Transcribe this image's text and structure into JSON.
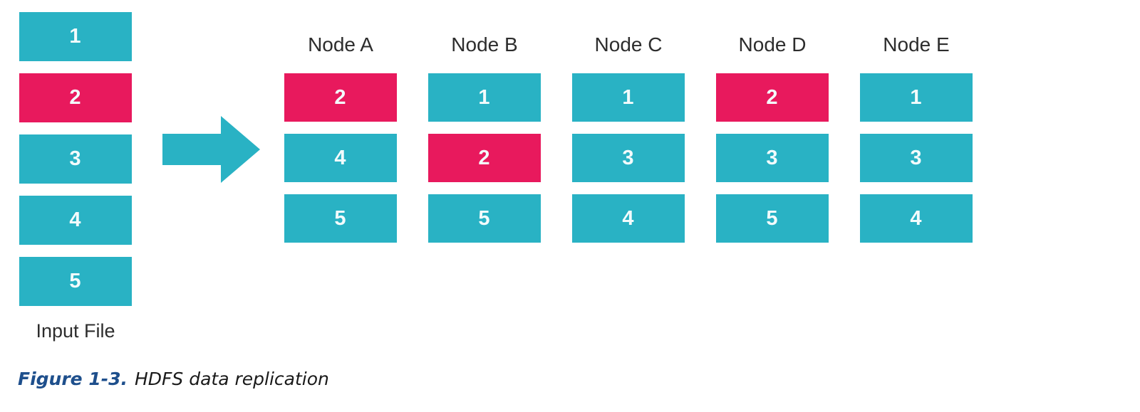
{
  "figure": {
    "caption_label": "Figure 1-3.",
    "caption_text": "HDFS data replication"
  },
  "colors": {
    "cyan": "#29b2c4",
    "pink": "#e8195d",
    "label_text": "#2d2d2d",
    "caption_blue": "#1e4f8c",
    "caption_text": "#1a1a1a"
  },
  "input_file": {
    "label": "Input File",
    "blocks": [
      {
        "id": "1",
        "highlight": false
      },
      {
        "id": "2",
        "highlight": true
      },
      {
        "id": "3",
        "highlight": false
      },
      {
        "id": "4",
        "highlight": false
      },
      {
        "id": "5",
        "highlight": false
      }
    ]
  },
  "nodes": [
    {
      "label": "Node A",
      "blocks": [
        {
          "id": "2",
          "highlight": true
        },
        {
          "id": "4",
          "highlight": false
        },
        {
          "id": "5",
          "highlight": false
        }
      ]
    },
    {
      "label": "Node B",
      "blocks": [
        {
          "id": "1",
          "highlight": false
        },
        {
          "id": "2",
          "highlight": true
        },
        {
          "id": "5",
          "highlight": false
        }
      ]
    },
    {
      "label": "Node C",
      "blocks": [
        {
          "id": "1",
          "highlight": false
        },
        {
          "id": "3",
          "highlight": false
        },
        {
          "id": "4",
          "highlight": false
        }
      ]
    },
    {
      "label": "Node D",
      "blocks": [
        {
          "id": "2",
          "highlight": true
        },
        {
          "id": "3",
          "highlight": false
        },
        {
          "id": "5",
          "highlight": false
        }
      ]
    },
    {
      "label": "Node E",
      "blocks": [
        {
          "id": "1",
          "highlight": false
        },
        {
          "id": "3",
          "highlight": false
        },
        {
          "id": "4",
          "highlight": false
        }
      ]
    }
  ],
  "icons": {
    "arrow": "right-arrow-icon"
  }
}
